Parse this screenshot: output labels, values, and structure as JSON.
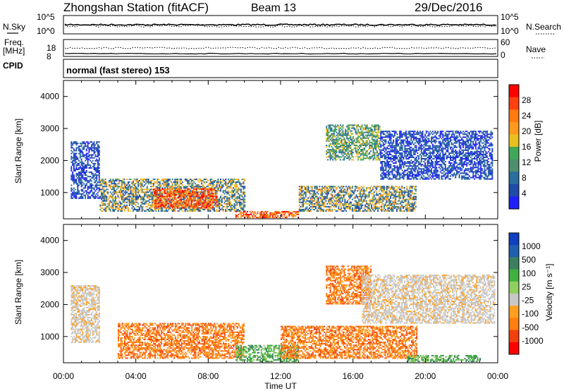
{
  "header": {
    "station": "Zhongshan Station (fitACF)",
    "beam": "Beam 13",
    "date": "29/Dec/2016"
  },
  "noise_panel": {
    "left_label": "N.Sky",
    "right_label": "N.Search",
    "left_ticks": [
      "10^5",
      "10^0"
    ],
    "right_ticks": [
      "10^5",
      "10^0"
    ]
  },
  "freq_panel": {
    "left_label_line1": "Freq.",
    "left_label_line2": "[MHz]",
    "cpid_label": "CPID",
    "right_label": "Nave",
    "left_ticks": [
      "18",
      "8"
    ],
    "right_ticks": [
      "60",
      "0"
    ]
  },
  "mode_text": "normal (fast stereo) 153",
  "colors": {
    "power_scale": [
      "#2020ff",
      "#1e4aa8",
      "#2a6ea0",
      "#4f8f6e",
      "#3fa85a",
      "#e8c020",
      "#ff9a1e",
      "#ff7a10",
      "#ff4010",
      "#ff0000"
    ],
    "velocity_scale": [
      "#ff0000",
      "#f04010",
      "#ff7f10",
      "#ffa020",
      "#c8c8c8",
      "#90d060",
      "#40b040",
      "#3a8060",
      "#2060b0",
      "#1040c0"
    ]
  },
  "chart_data": [
    {
      "type": "heatmap",
      "name": "power",
      "ylabel": "Slant Range [km]",
      "yticks": [
        "4000",
        "3000",
        "2000",
        "1000"
      ],
      "ylim": [
        180,
        4500
      ],
      "colorbar_label": "Power [dB]",
      "colorbar_ticks": [
        "28",
        "24",
        "20",
        "16",
        "12",
        "8",
        "4"
      ],
      "xlim_hours": [
        0,
        24
      ],
      "regions": [
        {
          "t0": 0.4,
          "t1": 2.0,
          "r0": 800,
          "r1": 2600,
          "level": "low"
        },
        {
          "t0": 2.0,
          "t1": 10.0,
          "r0": 400,
          "r1": 1400,
          "level": "high"
        },
        {
          "t0": 5.0,
          "t1": 8.5,
          "r0": 500,
          "r1": 1100,
          "level": "peak"
        },
        {
          "t0": 9.5,
          "t1": 13.0,
          "r0": 200,
          "r1": 400,
          "level": "peak"
        },
        {
          "t0": 13.0,
          "t1": 19.5,
          "r0": 400,
          "r1": 1200,
          "level": "high"
        },
        {
          "t0": 14.5,
          "t1": 17.5,
          "r0": 2000,
          "r1": 3100,
          "level": "mid"
        },
        {
          "t0": 17.5,
          "t1": 23.7,
          "r0": 1400,
          "r1": 2900,
          "level": "low"
        }
      ]
    },
    {
      "type": "heatmap",
      "name": "velocity",
      "ylabel": "Slant Range [km]",
      "yticks": [
        "4000",
        "3000",
        "2000",
        "1000"
      ],
      "ylim": [
        180,
        4500
      ],
      "colorbar_label": "Velocity [m s⁻¹]",
      "colorbar_ticks": [
        "1000",
        "500",
        "100",
        "25",
        "-25",
        "-100",
        "-500",
        "-1000"
      ],
      "xlabel": "Time UT",
      "xticks": [
        "00:00",
        "04:00",
        "08:00",
        "12:00",
        "16:00",
        "20:00",
        "00:00"
      ],
      "xlim_hours": [
        0,
        24
      ],
      "regions": [
        {
          "t0": 0.4,
          "t1": 2.0,
          "r0": 800,
          "r1": 2600,
          "level": "gray"
        },
        {
          "t0": 3.0,
          "t1": 10.0,
          "r0": 300,
          "r1": 1400,
          "level": "orange"
        },
        {
          "t0": 9.5,
          "t1": 13.0,
          "r0": 200,
          "r1": 700,
          "level": "green"
        },
        {
          "t0": 12.0,
          "t1": 19.5,
          "r0": 300,
          "r1": 1300,
          "level": "orange"
        },
        {
          "t0": 14.5,
          "t1": 17.0,
          "r0": 2000,
          "r1": 3200,
          "level": "orange"
        },
        {
          "t0": 16.5,
          "t1": 23.8,
          "r0": 1400,
          "r1": 2900,
          "level": "gray"
        },
        {
          "t0": 19.0,
          "t1": 23.0,
          "r0": 200,
          "r1": 400,
          "level": "green"
        }
      ]
    }
  ]
}
